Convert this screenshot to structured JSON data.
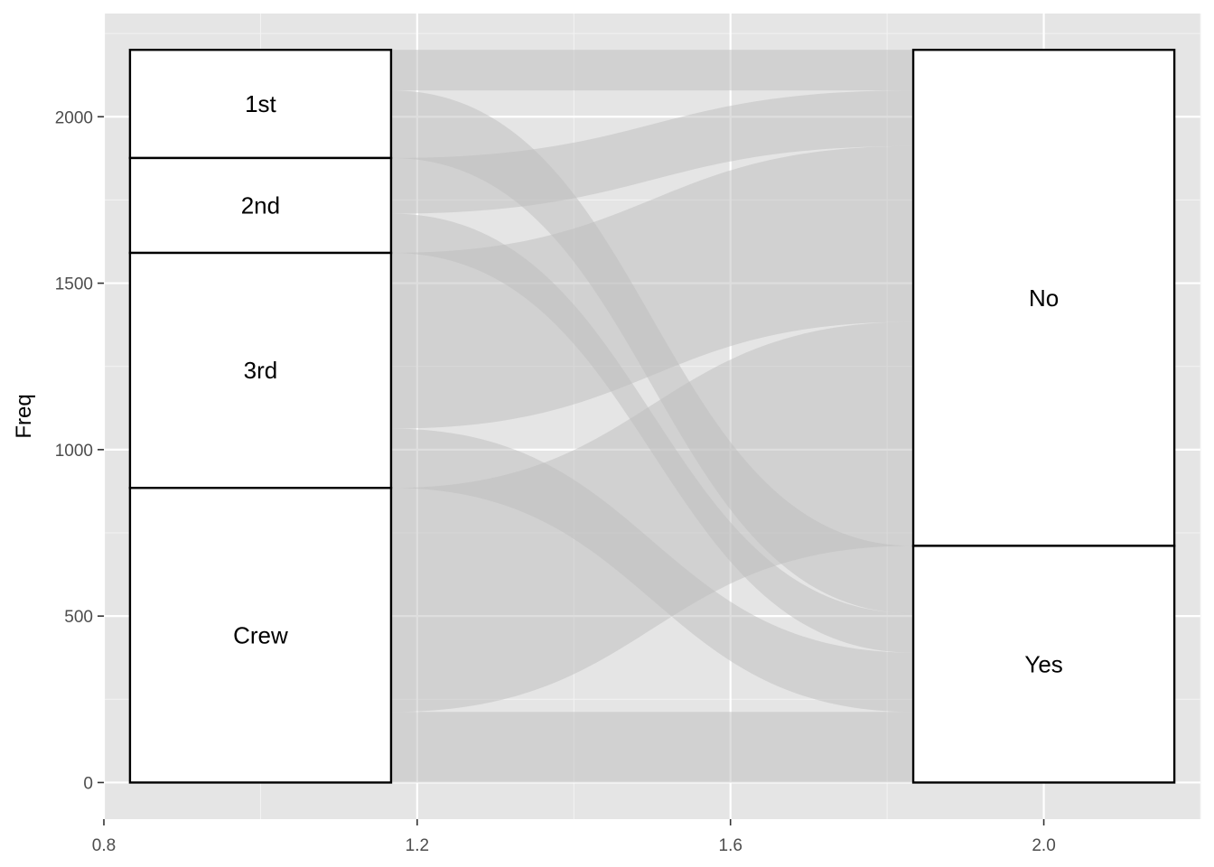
{
  "chart_data": {
    "type": "alluvial",
    "title": "",
    "xlabel": "",
    "ylabel": "Freq",
    "xlim": [
      0.8,
      2.2
    ],
    "ylim": [
      -110,
      2310
    ],
    "x_ticks": [
      {
        "value": 0.8,
        "label": "0.8"
      },
      {
        "value": 1.2,
        "label": "1.2"
      },
      {
        "value": 1.6,
        "label": "1.6"
      },
      {
        "value": 2.0,
        "label": "2.0"
      }
    ],
    "y_ticks": [
      {
        "value": 0,
        "label": "0"
      },
      {
        "value": 500,
        "label": "500"
      },
      {
        "value": 1000,
        "label": "1000"
      },
      {
        "value": 1500,
        "label": "1500"
      },
      {
        "value": 2000,
        "label": "2000"
      }
    ],
    "axes": [
      {
        "x": 1,
        "strata": [
          {
            "label": "1st",
            "value": 325
          },
          {
            "label": "2nd",
            "value": 285
          },
          {
            "label": "3rd",
            "value": 706
          },
          {
            "label": "Crew",
            "value": 885
          }
        ]
      },
      {
        "x": 2,
        "strata": [
          {
            "label": "No",
            "value": 1490
          },
          {
            "label": "Yes",
            "value": 711
          }
        ]
      }
    ],
    "flows": [
      {
        "from": "1st",
        "to": "No",
        "value": 122
      },
      {
        "from": "1st",
        "to": "Yes",
        "value": 203
      },
      {
        "from": "2nd",
        "to": "No",
        "value": 167
      },
      {
        "from": "2nd",
        "to": "Yes",
        "value": 118
      },
      {
        "from": "3rd",
        "to": "No",
        "value": 528
      },
      {
        "from": "3rd",
        "to": "Yes",
        "value": 178
      },
      {
        "from": "Crew",
        "to": "No",
        "value": 673
      },
      {
        "from": "Crew",
        "to": "Yes",
        "value": 212
      }
    ],
    "colors": {
      "panel": "#e5e5e5",
      "flow": "#bdbdbd",
      "stratum_fill": "#ffffff",
      "stratum_border": "#000000"
    },
    "grid": true,
    "legend": "none"
  }
}
